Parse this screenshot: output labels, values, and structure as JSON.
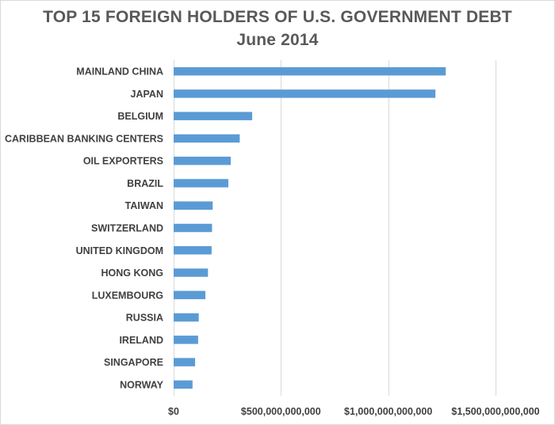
{
  "chart_data": {
    "type": "bar",
    "orientation": "horizontal",
    "title": "TOP 15 FOREIGN HOLDERS OF U.S. GOVERNMENT DEBT",
    "subtitle": "June 2014",
    "categories": [
      "MAINLAND CHINA",
      "JAPAN",
      "BELGIUM",
      "CARIBBEAN BANKING CENTERS",
      "OIL EXPORTERS",
      "BRAZIL",
      "TAIWAN",
      "SWITZERLAND",
      "UNITED KINGDOM",
      "HONG KONG",
      "LUXEMBOURG",
      "RUSSIA",
      "IRELAND",
      "SINGAPORE",
      "NORWAY"
    ],
    "values": [
      1268000000000,
      1220000000000,
      366000000000,
      308000000000,
      266000000000,
      255000000000,
      182000000000,
      179000000000,
      177000000000,
      160000000000,
      148000000000,
      117000000000,
      114000000000,
      100000000000,
      88000000000
    ],
    "xlim": [
      0,
      1500000000000
    ],
    "x_ticks": [
      0,
      500000000000,
      1000000000000,
      1500000000000
    ],
    "x_tick_labels": [
      "$0",
      "$500,000,000,000",
      "$1,000,000,000,000",
      "$1,500,000,000,000"
    ],
    "xlabel": "",
    "ylabel": "",
    "grid": true,
    "bar_color": "#5b9bd5",
    "grid_color": "#d9d9d9",
    "text_color": "#404040",
    "title_color": "#595959"
  }
}
